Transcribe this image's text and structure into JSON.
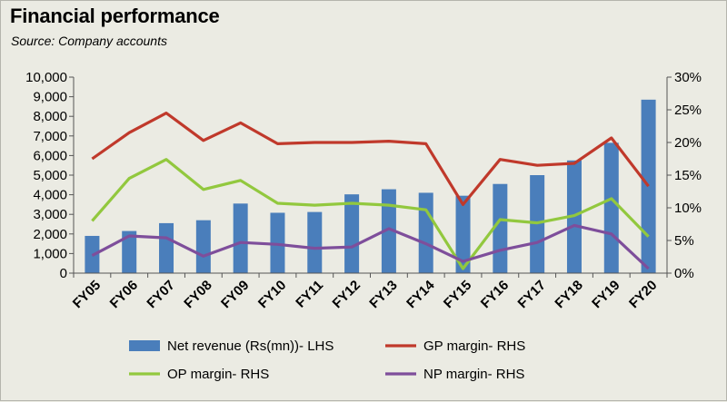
{
  "title": "Financial performance",
  "subtitle": "Source: Company accounts",
  "chart_data": {
    "type": "bar+line",
    "categories": [
      "FY05",
      "FY06",
      "FY07",
      "FY08",
      "FY09",
      "FY10",
      "FY11",
      "FY12",
      "FY13",
      "FY14",
      "FY15",
      "FY16",
      "FY17",
      "FY18",
      "FY19",
      "FY20"
    ],
    "bar_series": {
      "name": "Net revenue (Rs(mn))- LHS",
      "axis": "left",
      "color": "#4a7ebb",
      "values": [
        1900,
        2150,
        2550,
        2700,
        3550,
        3080,
        3120,
        4020,
        4280,
        4100,
        3950,
        4550,
        5000,
        5750,
        6650,
        8850
      ]
    },
    "line_series": [
      {
        "name": "GP margin- RHS",
        "axis": "right",
        "color": "#c0392b",
        "values": [
          17.5,
          21.5,
          24.5,
          20.3,
          23.0,
          19.8,
          20.0,
          20.0,
          20.2,
          19.8,
          10.5,
          17.4,
          16.5,
          16.8,
          20.7,
          13.3
        ]
      },
      {
        "name": "OP margin- RHS",
        "axis": "right",
        "color": "#92c83e",
        "values": [
          8.0,
          14.5,
          17.4,
          12.8,
          14.2,
          10.7,
          10.4,
          10.7,
          10.4,
          9.7,
          0.7,
          8.2,
          7.7,
          8.8,
          11.4,
          5.6
        ]
      },
      {
        "name": "NP margin- RHS",
        "axis": "right",
        "color": "#7e4e9b",
        "values": [
          2.7,
          5.7,
          5.4,
          2.6,
          4.7,
          4.4,
          3.8,
          4.0,
          6.8,
          4.5,
          1.8,
          3.5,
          4.7,
          7.3,
          6.0,
          0.7
        ]
      }
    ],
    "y_left": {
      "min": 0,
      "max": 10000,
      "step": 1000,
      "tick_labels": [
        "0",
        "1,000",
        "2,000",
        "3,000",
        "4,000",
        "5,000",
        "6,000",
        "7,000",
        "8,000",
        "9,000",
        "10,000"
      ]
    },
    "y_right": {
      "min": 0,
      "max": 30,
      "step": 5,
      "tick_labels": [
        "0%",
        "5%",
        "10%",
        "15%",
        "20%",
        "25%",
        "30%"
      ]
    },
    "grid": false,
    "legend_position": "bottom"
  }
}
